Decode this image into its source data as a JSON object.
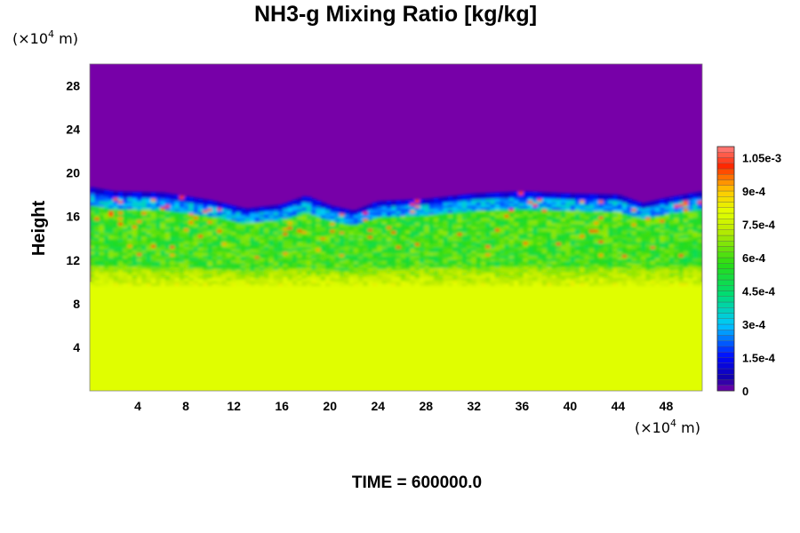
{
  "chart_data": {
    "type": "heatmap",
    "title": "NH3-g Mixing Ratio [kg/kg]",
    "ylabel": "Height",
    "x_unit": {
      "prefix": "(×10",
      "exp": "4",
      "suffix": " m)"
    },
    "y_unit": {
      "prefix": "(×10",
      "exp": "4",
      "suffix": " m)"
    },
    "footer": "TIME = 600000.0",
    "xlim": [
      0,
      51
    ],
    "ylim": [
      0,
      30
    ],
    "x_ticks": [
      4,
      8,
      12,
      16,
      20,
      24,
      28,
      32,
      36,
      40,
      44,
      48
    ],
    "y_ticks": [
      4,
      8,
      12,
      16,
      20,
      24,
      28
    ],
    "colorbar": {
      "min": 0,
      "max": 0.0011,
      "ticks": [
        {
          "value": 0,
          "label": "0"
        },
        {
          "value": 0.00015,
          "label": "1.5e-4"
        },
        {
          "value": 0.0003,
          "label": "3e-4"
        },
        {
          "value": 0.00045,
          "label": "4.5e-4"
        },
        {
          "value": 0.0006,
          "label": "6e-4"
        },
        {
          "value": 0.00075,
          "label": "7.5e-4"
        },
        {
          "value": 0.0009,
          "label": "9e-4"
        },
        {
          "value": 0.00105,
          "label": "1.05e-3"
        }
      ]
    },
    "field": {
      "lower_layer": {
        "height_top": 10,
        "value": 0.0008
      },
      "mixed_layer": {
        "height_range": [
          10,
          18
        ],
        "typical_value": 0.00055
      },
      "upper_layer": {
        "height_bottom": 18,
        "value": 0
      },
      "front_height_profile": [
        [
          0,
          18.0
        ],
        [
          2,
          17.6
        ],
        [
          6,
          17.5
        ],
        [
          10,
          16.8
        ],
        [
          13,
          16.0
        ],
        [
          16,
          16.4
        ],
        [
          18,
          17.2
        ],
        [
          20,
          16.3
        ],
        [
          22,
          15.8
        ],
        [
          24,
          16.7
        ],
        [
          28,
          16.9
        ],
        [
          32,
          17.4
        ],
        [
          36,
          17.6
        ],
        [
          40,
          17.4
        ],
        [
          44,
          17.3
        ],
        [
          46,
          16.5
        ],
        [
          48,
          17.0
        ],
        [
          51,
          17.6
        ]
      ]
    }
  },
  "colors": {
    "background": "#ffffff",
    "low_value": "#7700a8",
    "high_value": "#ff7f7f"
  }
}
